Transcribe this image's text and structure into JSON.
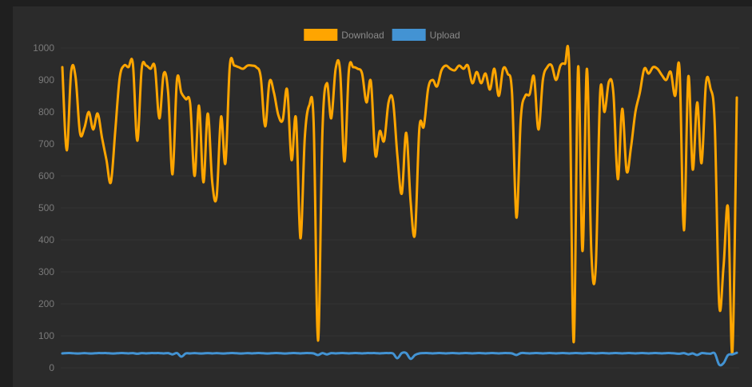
{
  "chart_data": {
    "type": "line",
    "title": "",
    "xlabel": "",
    "ylabel": "",
    "ylim": [
      0,
      1000
    ],
    "yticks": [
      0,
      100,
      200,
      300,
      400,
      500,
      600,
      700,
      800,
      900,
      1000
    ],
    "grid": "horizontal",
    "legend_position": "top-center",
    "series": [
      {
        "name": "Download",
        "color": "#ffa500",
        "values": [
          940,
          680,
          925,
          910,
          735,
          750,
          800,
          745,
          795,
          720,
          650,
          580,
          740,
          905,
          945,
          940,
          950,
          710,
          935,
          945,
          935,
          940,
          780,
          920,
          860,
          605,
          900,
          860,
          840,
          825,
          600,
          820,
          580,
          795,
          580,
          535,
          785,
          640,
          945,
          945,
          940,
          935,
          945,
          945,
          940,
          910,
          755,
          895,
          860,
          790,
          775,
          870,
          650,
          780,
          405,
          720,
          820,
          770,
          85,
          740,
          890,
          780,
          935,
          930,
          645,
          930,
          940,
          935,
          920,
          830,
          895,
          665,
          740,
          710,
          830,
          835,
          665,
          545,
          735,
          520,
          420,
          750,
          755,
          875,
          900,
          880,
          930,
          945,
          935,
          930,
          945,
          935,
          945,
          890,
          925,
          890,
          920,
          870,
          935,
          850,
          935,
          920,
          860,
          470,
          780,
          850,
          855,
          910,
          745,
          900,
          940,
          945,
          900,
          945,
          950,
          935,
          80,
          940,
          365,
          935,
          360,
          315,
          860,
          800,
          895,
          860,
          590,
          810,
          615,
          690,
          800,
          860,
          935,
          920,
          940,
          935,
          915,
          900,
          925,
          850,
          935,
          430,
          910,
          620,
          830,
          640,
          890,
          875,
          760,
          200,
          320,
          500,
          50,
          845
        ]
      },
      {
        "name": "Upload",
        "color": "#4393d3",
        "values": [
          45,
          46,
          46,
          45,
          45,
          46,
          45,
          45,
          46,
          46,
          46,
          45,
          45,
          46,
          46,
          45,
          46,
          44,
          46,
          45,
          46,
          46,
          46,
          45,
          46,
          42,
          46,
          35,
          45,
          45,
          46,
          45,
          45,
          46,
          45,
          46,
          45,
          45,
          46,
          46,
          45,
          45,
          46,
          45,
          46,
          46,
          45,
          45,
          46,
          46,
          45,
          45,
          46,
          46,
          45,
          46,
          46,
          45,
          40,
          46,
          42,
          46,
          45,
          46,
          46,
          45,
          46,
          46,
          45,
          46,
          46,
          46,
          45,
          46,
          46,
          45,
          30,
          46,
          46,
          28,
          40,
          45,
          46,
          46,
          45,
          46,
          46,
          45,
          46,
          46,
          45,
          46,
          46,
          45,
          46,
          46,
          45,
          46,
          46,
          45,
          46,
          46,
          45,
          40,
          46,
          46,
          45,
          46,
          46,
          45,
          46,
          46,
          45,
          46,
          46,
          45,
          46,
          46,
          45,
          46,
          46,
          45,
          46,
          46,
          45,
          46,
          46,
          45,
          46,
          46,
          45,
          46,
          46,
          45,
          46,
          46,
          45,
          46,
          46,
          45,
          44,
          46,
          42,
          45,
          40,
          46,
          45,
          44,
          45,
          10,
          15,
          40,
          42,
          47
        ]
      }
    ]
  }
}
